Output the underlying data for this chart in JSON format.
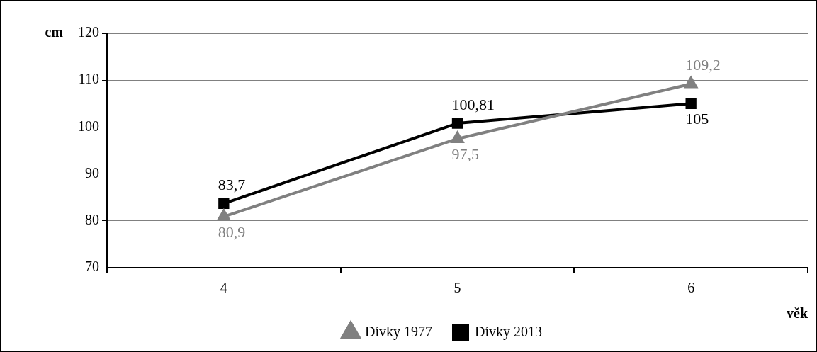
{
  "chart_data": {
    "type": "line",
    "xlabel": "věk",
    "ylabel": "cm",
    "categories": [
      "4",
      "5",
      "6"
    ],
    "series": [
      {
        "name": "Dívky 1977",
        "color": "#808080",
        "marker": "triangle",
        "values": [
          80.9,
          97.5,
          109.2
        ],
        "value_labels": [
          "80,9",
          "97,5",
          "109,2"
        ]
      },
      {
        "name": "Dívky 2013",
        "color": "#000000",
        "marker": "square",
        "values": [
          83.7,
          100.81,
          105
        ],
        "value_labels": [
          "83,7",
          "100,81",
          "105"
        ]
      }
    ],
    "ylim": [
      70,
      120
    ],
    "yticks": [
      70,
      80,
      90,
      100,
      110,
      120
    ],
    "grid": "y",
    "legend": "bottom",
    "line_style": "solid"
  }
}
